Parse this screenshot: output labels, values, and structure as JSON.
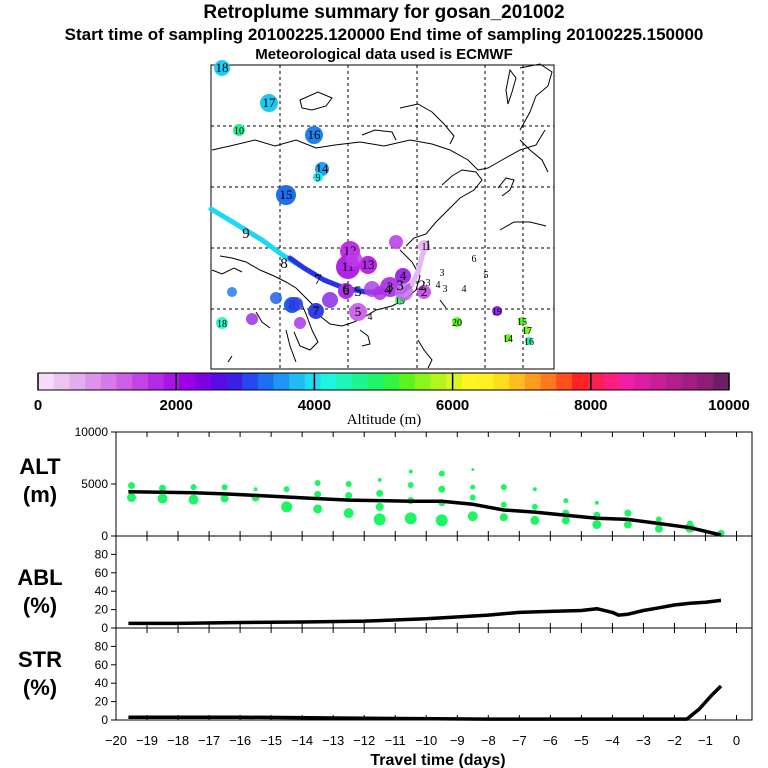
{
  "header": {
    "title": "Retroplume summary for gosan_201002",
    "sampling_line": "Start time of sampling 20100225.120000     End time of sampling 20100225.150000",
    "met_line": "Meteorological data used is ECMWF"
  },
  "colorbar": {
    "tick_labels": [
      "0",
      "2000",
      "4000",
      "6000",
      "8000",
      "10000"
    ],
    "title": "Altitude (m)",
    "colors": [
      "#f3dcf5",
      "#ebc4f0",
      "#e3aeed",
      "#dc94ea",
      "#d57ae9",
      "#cd5fe7",
      "#c244e6",
      "#b52ae5",
      "#a714e6",
      "#9900e6",
      "#8000e6",
      "#5a0ae6",
      "#3c1ee6",
      "#2846f0",
      "#1e6ef0",
      "#1e96f5",
      "#1ebef5",
      "#1edcf5",
      "#1ef5e1",
      "#1ef5b9",
      "#1ef591",
      "#1ef569",
      "#32f541",
      "#5af51e",
      "#8cf51e",
      "#b4f51e",
      "#dcf51e",
      "#fff51e",
      "#fff01e",
      "#ffdc1e",
      "#ffbe1e",
      "#ff9b1e",
      "#ff781e",
      "#ff501e",
      "#ff2323",
      "#ff1e50",
      "#ff1e7d",
      "#f01ea5",
      "#dc1ea5",
      "#c81e96",
      "#b41e8c",
      "#a01e82",
      "#8c1e78",
      "#6e1e64"
    ]
  },
  "map_labels": [
    {
      "text": "18",
      "color": "#1ecdf5"
    },
    {
      "text": "17",
      "color": "#1ec8f0"
    },
    {
      "text": "10",
      "color": "#28f08c"
    },
    {
      "text": "16",
      "color": "#1e82eb"
    },
    {
      "text": "15",
      "color": "#1e6ef0"
    },
    {
      "text": "14",
      "color": "#1ea0f5"
    },
    {
      "text": "9",
      "color": "#1ee6f0"
    },
    {
      "text": "12",
      "color": "#c030e6"
    },
    {
      "text": "11",
      "color": "#b024e6"
    },
    {
      "text": "13",
      "color": "#b828e6"
    },
    {
      "text": "6",
      "color": "#b030e6"
    },
    {
      "text": "1",
      "color": "#e8b8f2"
    },
    {
      "text": "2",
      "color": "#c85ae8"
    },
    {
      "text": "3",
      "color": "#b040e6"
    },
    {
      "text": "4",
      "color": "#a030e6"
    },
    {
      "text": "5",
      "color": "#cc66ea"
    },
    {
      "text": "7",
      "color": "#3040e6"
    },
    {
      "text": "8",
      "color": "#1e5af0"
    },
    {
      "text": "19",
      "color": "#9028e6"
    },
    {
      "text": "20",
      "color": "#5af51e"
    },
    {
      "text": "14",
      "color": "#6ef51e"
    },
    {
      "text": "15",
      "color": "#50f51e"
    },
    {
      "text": "16",
      "color": "#28f0a0"
    },
    {
      "text": "17",
      "color": "#7af51e"
    },
    {
      "text": "18",
      "color": "#30f5c8"
    },
    {
      "text": "19",
      "color": "#3cf564"
    }
  ],
  "trajectory_labels": [
    "1",
    "2",
    "3",
    "4",
    "5",
    "6",
    "7",
    "8",
    "9"
  ],
  "xaxis": {
    "ticks": [
      -20,
      -19,
      -18,
      -17,
      -16,
      -15,
      -14,
      -13,
      -12,
      -11,
      -10,
      -9,
      -8,
      -7,
      -6,
      -5,
      -4,
      -3,
      -2,
      -1,
      0
    ],
    "tick_labels": [
      "−20",
      "−19",
      "−18",
      "−17",
      "−16",
      "−15",
      "−14",
      "−13",
      "−12",
      "−11",
      "−10",
      "−9",
      "−8",
      "−7",
      "−6",
      "−5",
      "−4",
      "−3",
      "−2",
      "−1",
      "0"
    ],
    "label": "Travel time (days)"
  },
  "chart_data": [
    {
      "type": "line",
      "id": "alt",
      "ylabel": "ALT\n(m)",
      "ylabel_lines": [
        "ALT",
        "(m)"
      ],
      "ylim": [
        0,
        10000
      ],
      "ytick_labels": [
        "10000",
        "5000",
        "0"
      ],
      "yticks": [
        10000,
        5000,
        0
      ],
      "line_color": "#000000",
      "x": [
        -19.6,
        -18.5,
        -17.5,
        -16.5,
        -15.5,
        -14.5,
        -13.5,
        -12.5,
        -11.5,
        -10.5,
        -9.5,
        -8.5,
        -7.5,
        -6.5,
        -5.5,
        -4.5,
        -3.5,
        -2.5,
        -1.5,
        -0.5
      ],
      "y": [
        4250,
        4200,
        4150,
        4050,
        3900,
        3750,
        3600,
        3450,
        3400,
        3350,
        3350,
        3050,
        2500,
        2300,
        2000,
        1700,
        1600,
        1200,
        800,
        100
      ],
      "marker_color": "#1ef564",
      "markers": [
        {
          "x": -19.5,
          "y": 4850,
          "s": 3.5
        },
        {
          "x": -19.5,
          "y": 3700,
          "s": 4.5
        },
        {
          "x": -18.5,
          "y": 4600,
          "s": 3.5
        },
        {
          "x": -18.5,
          "y": 3600,
          "s": 5
        },
        {
          "x": -17.5,
          "y": 4700,
          "s": 3
        },
        {
          "x": -17.5,
          "y": 3500,
          "s": 5
        },
        {
          "x": -16.5,
          "y": 4700,
          "s": 3
        },
        {
          "x": -16.5,
          "y": 3600,
          "s": 4
        },
        {
          "x": -15.5,
          "y": 4500,
          "s": 2
        },
        {
          "x": -15.5,
          "y": 3700,
          "s": 4
        },
        {
          "x": -14.5,
          "y": 4500,
          "s": 3
        },
        {
          "x": -14.5,
          "y": 2800,
          "s": 5.5
        },
        {
          "x": -13.5,
          "y": 5100,
          "s": 3
        },
        {
          "x": -13.5,
          "y": 4000,
          "s": 3.5
        },
        {
          "x": -13.5,
          "y": 2600,
          "s": 4.5
        },
        {
          "x": -12.5,
          "y": 5000,
          "s": 3
        },
        {
          "x": -12.5,
          "y": 3900,
          "s": 3.5
        },
        {
          "x": -12.5,
          "y": 2200,
          "s": 5
        },
        {
          "x": -11.5,
          "y": 5400,
          "s": 2
        },
        {
          "x": -11.5,
          "y": 4100,
          "s": 3.5
        },
        {
          "x": -11.5,
          "y": 2800,
          "s": 4
        },
        {
          "x": -11.5,
          "y": 1600,
          "s": 6
        },
        {
          "x": -10.5,
          "y": 6200,
          "s": 2
        },
        {
          "x": -10.5,
          "y": 4900,
          "s": 3
        },
        {
          "x": -10.5,
          "y": 3400,
          "s": 3.5
        },
        {
          "x": -10.5,
          "y": 1700,
          "s": 6
        },
        {
          "x": -9.5,
          "y": 6000,
          "s": 3
        },
        {
          "x": -9.5,
          "y": 4500,
          "s": 3.5
        },
        {
          "x": -9.5,
          "y": 3200,
          "s": 3.5
        },
        {
          "x": -9.5,
          "y": 1500,
          "s": 6
        },
        {
          "x": -8.5,
          "y": 6400,
          "s": 1.5
        },
        {
          "x": -8.5,
          "y": 4700,
          "s": 2.5
        },
        {
          "x": -8.5,
          "y": 3700,
          "s": 3
        },
        {
          "x": -8.5,
          "y": 1900,
          "s": 5
        },
        {
          "x": -7.5,
          "y": 4700,
          "s": 3
        },
        {
          "x": -7.5,
          "y": 3000,
          "s": 3
        },
        {
          "x": -7.5,
          "y": 1800,
          "s": 4
        },
        {
          "x": -6.5,
          "y": 4500,
          "s": 2
        },
        {
          "x": -6.5,
          "y": 2800,
          "s": 3
        },
        {
          "x": -6.5,
          "y": 1500,
          "s": 4.5
        },
        {
          "x": -5.5,
          "y": 3400,
          "s": 2.5
        },
        {
          "x": -5.5,
          "y": 2200,
          "s": 3.5
        },
        {
          "x": -5.5,
          "y": 1500,
          "s": 4
        },
        {
          "x": -4.5,
          "y": 3200,
          "s": 2
        },
        {
          "x": -4.5,
          "y": 2000,
          "s": 3.5
        },
        {
          "x": -4.5,
          "y": 1100,
          "s": 4.5
        },
        {
          "x": -3.5,
          "y": 2200,
          "s": 3.5
        },
        {
          "x": -3.5,
          "y": 1100,
          "s": 4
        },
        {
          "x": -2.5,
          "y": 1600,
          "s": 3
        },
        {
          "x": -2.5,
          "y": 700,
          "s": 4
        },
        {
          "x": -1.5,
          "y": 1200,
          "s": 3
        },
        {
          "x": -1.5,
          "y": 800,
          "s": 5
        },
        {
          "x": -0.5,
          "y": 250,
          "s": 3.5
        }
      ]
    },
    {
      "type": "line",
      "id": "abl",
      "ylabel": "ABL\n(%)",
      "ylabel_lines": [
        "ABL",
        "(%)"
      ],
      "ylim": [
        0,
        100
      ],
      "ytick_labels": [
        "80",
        "60",
        "40",
        "20",
        "0"
      ],
      "yticks": [
        80,
        60,
        40,
        20,
        0
      ],
      "x": [
        -19.6,
        -18,
        -16,
        -14,
        -12,
        -10,
        -8,
        -7,
        -6,
        -5,
        -4.5,
        -4,
        -3.8,
        -3.5,
        -3,
        -2.5,
        -2,
        -1.5,
        -1,
        -0.5
      ],
      "y": [
        5,
        5,
        6,
        6.5,
        7.5,
        10,
        14,
        17,
        18,
        19,
        21,
        17,
        14,
        15,
        19,
        22,
        25,
        27,
        28,
        30
      ]
    },
    {
      "type": "line",
      "id": "str",
      "ylabel": "STR\n(%)",
      "ylabel_lines": [
        "STR",
        "(%)"
      ],
      "ylim": [
        0,
        100
      ],
      "ytick_labels": [
        "80",
        "60",
        "40",
        "20",
        "0"
      ],
      "yticks": [
        80,
        60,
        40,
        20,
        0
      ],
      "x": [
        -19.6,
        -16,
        -12,
        -8,
        -4,
        -2,
        -1.6,
        -1.2,
        -0.8,
        -0.5
      ],
      "y": [
        3,
        3,
        2,
        1,
        1,
        1,
        1,
        12,
        27,
        37
      ]
    }
  ]
}
